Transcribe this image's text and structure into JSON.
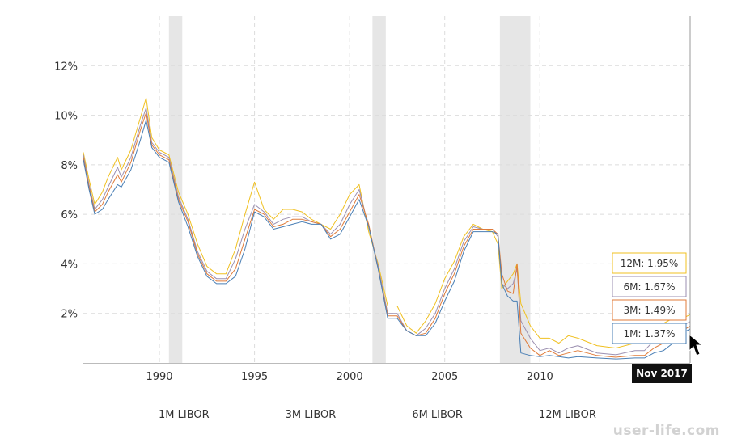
{
  "chart_data": {
    "type": "line",
    "y_ticks": [
      "2%",
      "4%",
      "6%",
      "8%",
      "10%",
      "12%"
    ],
    "y_tick_values": [
      2,
      4,
      6,
      8,
      10,
      12
    ],
    "ylim": [
      0,
      14
    ],
    "xlim": [
      1986,
      2017.9
    ],
    "x_ticks": [
      "1990",
      "1995",
      "2000",
      "2005",
      "2010"
    ],
    "x_tick_values": [
      1990,
      1995,
      2000,
      2005,
      2010
    ],
    "recessions": [
      [
        1990.5,
        1991.2
      ],
      [
        2001.2,
        2001.9
      ],
      [
        2007.9,
        2009.5
      ]
    ],
    "legend": [
      "1M LIBOR",
      "3M LIBOR",
      "6M LIBOR",
      "12M LIBOR"
    ],
    "series": [
      {
        "name": "1M LIBOR",
        "color": "#4a7fb5",
        "x": [
          1986,
          1986.3,
          1986.6,
          1987,
          1987.3,
          1987.8,
          1988,
          1988.5,
          1989,
          1989.3,
          1989.6,
          1990,
          1990.5,
          1991,
          1991.5,
          1992,
          1992.5,
          1993,
          1993.5,
          1994,
          1994.5,
          1995,
          1995.5,
          1996,
          1996.5,
          1997,
          1997.5,
          1998,
          1998.5,
          1999,
          1999.5,
          2000,
          2000.5,
          2001,
          2001.5,
          2002,
          2002.5,
          2003,
          2003.5,
          2004,
          2004.5,
          2005,
          2005.5,
          2006,
          2006.5,
          2007,
          2007.5,
          2007.8,
          2008,
          2008.3,
          2008.6,
          2008.8,
          2009,
          2009.5,
          2010,
          2010.5,
          2011,
          2011.5,
          2012,
          2013,
          2014,
          2015,
          2015.5,
          2016,
          2016.5,
          2017,
          2017.5,
          2017.9
        ],
        "y": [
          8.2,
          7.0,
          6.0,
          6.2,
          6.6,
          7.2,
          7.1,
          7.8,
          9.0,
          9.8,
          8.7,
          8.3,
          8.1,
          6.5,
          5.5,
          4.3,
          3.5,
          3.2,
          3.2,
          3.5,
          4.6,
          6.1,
          5.9,
          5.4,
          5.5,
          5.6,
          5.7,
          5.6,
          5.6,
          5.0,
          5.2,
          5.9,
          6.6,
          5.5,
          3.8,
          1.8,
          1.8,
          1.3,
          1.1,
          1.1,
          1.6,
          2.5,
          3.3,
          4.5,
          5.3,
          5.3,
          5.3,
          5.2,
          3.2,
          2.7,
          2.5,
          2.5,
          0.4,
          0.3,
          0.25,
          0.3,
          0.25,
          0.2,
          0.25,
          0.2,
          0.16,
          0.2,
          0.2,
          0.4,
          0.5,
          0.8,
          1.2,
          1.37
        ]
      },
      {
        "name": "3M LIBOR",
        "color": "#e07b39",
        "x": [
          1986,
          1986.3,
          1986.6,
          1987,
          1987.3,
          1987.8,
          1988,
          1988.5,
          1989,
          1989.3,
          1989.6,
          1990,
          1990.5,
          1991,
          1991.5,
          1992,
          1992.5,
          1993,
          1993.5,
          1994,
          1994.5,
          1995,
          1995.5,
          1996,
          1996.5,
          1997,
          1997.5,
          1998,
          1998.5,
          1999,
          1999.5,
          2000,
          2000.5,
          2001,
          2001.5,
          2002,
          2002.5,
          2003,
          2003.5,
          2004,
          2004.5,
          2005,
          2005.5,
          2006,
          2006.5,
          2007,
          2007.5,
          2007.8,
          2008,
          2008.3,
          2008.6,
          2008.8,
          2009,
          2009.5,
          2010,
          2010.5,
          2011,
          2011.5,
          2012,
          2013,
          2014,
          2015,
          2015.5,
          2016,
          2016.5,
          2017,
          2017.5,
          2017.9
        ],
        "y": [
          8.3,
          7.1,
          6.1,
          6.4,
          6.9,
          7.6,
          7.3,
          8.1,
          9.4,
          10.1,
          8.8,
          8.4,
          8.2,
          6.6,
          5.7,
          4.4,
          3.6,
          3.3,
          3.3,
          3.8,
          5.0,
          6.2,
          6.0,
          5.5,
          5.6,
          5.8,
          5.8,
          5.7,
          5.6,
          5.1,
          5.4,
          6.1,
          6.8,
          5.6,
          3.8,
          1.9,
          1.9,
          1.3,
          1.1,
          1.2,
          1.8,
          2.8,
          3.6,
          4.7,
          5.4,
          5.4,
          5.4,
          5.2,
          3.6,
          2.9,
          2.8,
          4.0,
          1.2,
          0.6,
          0.3,
          0.5,
          0.3,
          0.4,
          0.5,
          0.3,
          0.23,
          0.3,
          0.3,
          0.6,
          0.8,
          1.1,
          1.3,
          1.49
        ]
      },
      {
        "name": "6M LIBOR",
        "color": "#9b8fb0",
        "x": [
          1986,
          1986.3,
          1986.6,
          1987,
          1987.3,
          1987.8,
          1988,
          1988.5,
          1989,
          1989.3,
          1989.6,
          1990,
          1990.5,
          1991,
          1991.5,
          1992,
          1992.5,
          1993,
          1993.5,
          1994,
          1994.5,
          1995,
          1995.5,
          1996,
          1996.5,
          1997,
          1997.5,
          1998,
          1998.5,
          1999,
          1999.5,
          2000,
          2000.5,
          2001,
          2001.5,
          2002,
          2002.5,
          2003,
          2003.5,
          2004,
          2004.5,
          2005,
          2005.5,
          2006,
          2006.5,
          2007,
          2007.5,
          2007.8,
          2008,
          2008.3,
          2008.6,
          2008.8,
          2009,
          2009.5,
          2010,
          2010.5,
          2011,
          2011.5,
          2012,
          2013,
          2014,
          2015,
          2015.5,
          2016,
          2016.5,
          2017,
          2017.5,
          2017.9
        ],
        "y": [
          8.4,
          7.2,
          6.2,
          6.6,
          7.1,
          7.9,
          7.5,
          8.3,
          9.6,
          10.3,
          8.9,
          8.5,
          8.3,
          6.7,
          5.8,
          4.5,
          3.7,
          3.4,
          3.4,
          4.2,
          5.4,
          6.4,
          6.1,
          5.6,
          5.8,
          5.9,
          5.9,
          5.7,
          5.6,
          5.2,
          5.6,
          6.4,
          7.0,
          5.5,
          3.9,
          2.0,
          2.0,
          1.3,
          1.1,
          1.4,
          2.0,
          3.0,
          3.8,
          4.9,
          5.5,
          5.4,
          5.4,
          5.1,
          3.2,
          3.0,
          3.2,
          3.8,
          1.7,
          1.0,
          0.5,
          0.6,
          0.4,
          0.6,
          0.7,
          0.4,
          0.33,
          0.5,
          0.5,
          0.9,
          1.2,
          1.4,
          1.5,
          1.67
        ]
      },
      {
        "name": "12M LIBOR",
        "color": "#f0c020",
        "x": [
          1986,
          1986.3,
          1986.6,
          1987,
          1987.3,
          1987.8,
          1988,
          1988.5,
          1989,
          1989.3,
          1989.6,
          1990,
          1990.5,
          1991,
          1991.5,
          1992,
          1992.5,
          1993,
          1993.5,
          1994,
          1994.5,
          1995,
          1995.5,
          1996,
          1996.5,
          1997,
          1997.5,
          1998,
          1998.5,
          1999,
          1999.5,
          2000,
          2000.5,
          2001,
          2001.5,
          2002,
          2002.5,
          2003,
          2003.5,
          2004,
          2004.5,
          2005,
          2005.5,
          2006,
          2006.5,
          2007,
          2007.5,
          2007.8,
          2008,
          2008.3,
          2008.6,
          2008.8,
          2009,
          2009.5,
          2010,
          2010.5,
          2011,
          2011.5,
          2012,
          2013,
          2014,
          2015,
          2015.5,
          2016,
          2016.5,
          2017,
          2017.5,
          2017.9
        ],
        "y": [
          8.5,
          7.4,
          6.4,
          6.9,
          7.5,
          8.3,
          7.8,
          8.6,
          9.9,
          10.7,
          9.1,
          8.6,
          8.4,
          6.9,
          6.0,
          4.8,
          3.9,
          3.6,
          3.6,
          4.6,
          6.0,
          7.3,
          6.2,
          5.8,
          6.2,
          6.2,
          6.1,
          5.8,
          5.6,
          5.4,
          6.0,
          6.8,
          7.2,
          5.3,
          4.0,
          2.3,
          2.3,
          1.5,
          1.2,
          1.7,
          2.4,
          3.4,
          4.1,
          5.1,
          5.6,
          5.4,
          5.3,
          4.8,
          3.0,
          3.3,
          3.6,
          4.0,
          2.4,
          1.5,
          1.0,
          1.0,
          0.8,
          1.1,
          1.0,
          0.7,
          0.6,
          0.8,
          0.9,
          1.3,
          1.6,
          1.8,
          1.8,
          1.95
        ]
      }
    ],
    "tooltip": {
      "date": "Nov 2017",
      "entries": [
        {
          "text": "12M: 1.95%",
          "color": "#f0c020"
        },
        {
          "text": "6M: 1.67%",
          "color": "#9b8fb0"
        },
        {
          "text": "3M: 1.49%",
          "color": "#e07b39"
        },
        {
          "text": "1M: 1.37%",
          "color": "#4a7fb5"
        }
      ]
    }
  },
  "watermark": "user-life.com"
}
